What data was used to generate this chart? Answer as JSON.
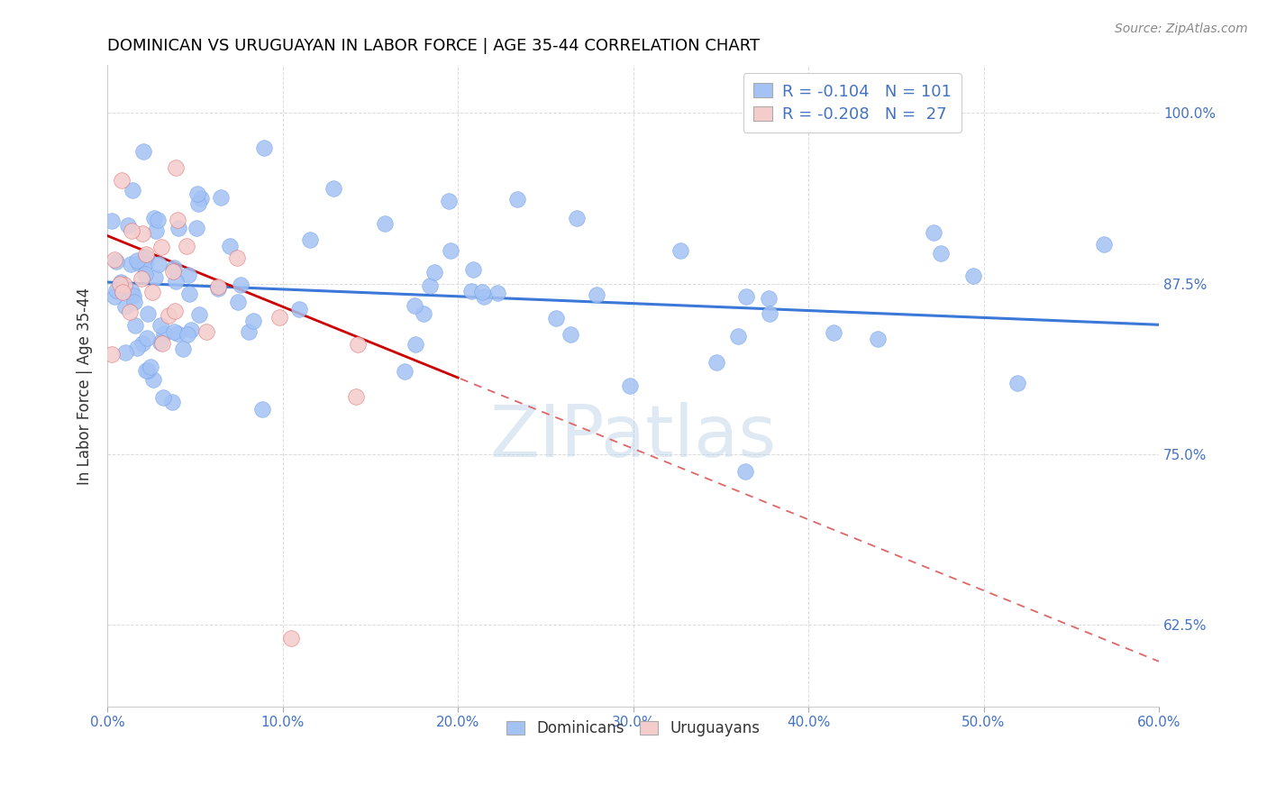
{
  "title": "DOMINICAN VS URUGUAYAN IN LABOR FORCE | AGE 35-44 CORRELATION CHART",
  "source": "Source: ZipAtlas.com",
  "ylabel": "In Labor Force | Age 35-44",
  "xlim": [
    0.0,
    0.6
  ],
  "ylim": [
    0.565,
    1.035
  ],
  "xticks": [
    0.0,
    0.1,
    0.2,
    0.3,
    0.4,
    0.5,
    0.6
  ],
  "xtick_labels": [
    "0.0%",
    "10.0%",
    "20.0%",
    "30.0%",
    "40.0%",
    "50.0%",
    "60.0%"
  ],
  "yticks_right": [
    1.0,
    0.875,
    0.75,
    0.625
  ],
  "ytick_labels_right": [
    "100.0%",
    "87.5%",
    "75.0%",
    "62.5%"
  ],
  "blue_color": "#a4c2f4",
  "pink_color": "#f4cccc",
  "blue_edge_color": "#6d9eeb",
  "pink_edge_color": "#e06666",
  "blue_line_color": "#3c78d8",
  "pink_solid_color": "#cc0000",
  "pink_dash_color": "#e06666",
  "blue_R": -0.104,
  "blue_N": 101,
  "pink_R": -0.208,
  "pink_N": 27,
  "legend_label_blue": "Dominicans",
  "legend_label_pink": "Uruguayans",
  "watermark": "ZIPatlas",
  "background_color": "#ffffff",
  "grid_color": "#cccccc",
  "title_color": "#000000",
  "axis_label_color": "#333333",
  "tick_label_color": "#4472c4",
  "source_color": "#888888",
  "blue_line_intercept": 0.876,
  "blue_line_slope": -0.052,
  "pink_line_intercept": 0.91,
  "pink_line_slope": -0.52
}
